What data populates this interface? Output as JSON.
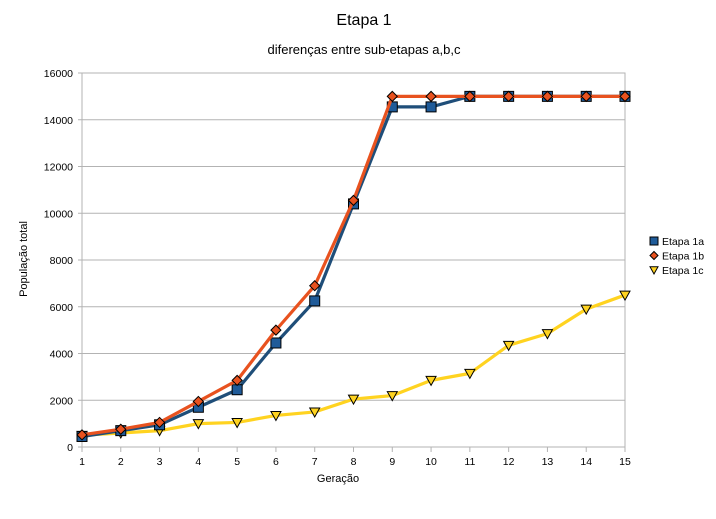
{
  "chart_data": {
    "type": "line",
    "title": "Etapa 1",
    "subtitle": "diferenças entre sub-etapas a,b,c",
    "xlabel": "Geração",
    "ylabel": "População total",
    "x": [
      1,
      2,
      3,
      4,
      5,
      6,
      7,
      8,
      9,
      10,
      11,
      12,
      13,
      14,
      15
    ],
    "xlim": [
      1,
      15
    ],
    "ylim": [
      0,
      16000
    ],
    "yticks": [
      0,
      2000,
      4000,
      6000,
      8000,
      10000,
      12000,
      14000,
      16000
    ],
    "grid": true,
    "legend_position": "right",
    "series": [
      {
        "name": "Etapa 1a",
        "color": "#1f4e79",
        "marker": "square",
        "marker_fill": "#1f5b99",
        "values": [
          450,
          700,
          950,
          1700,
          2450,
          4450,
          6250,
          10400,
          14550,
          14550,
          15000,
          15000,
          15000,
          15000,
          15000
        ]
      },
      {
        "name": "Etapa 1b",
        "color": "#e8521f",
        "marker": "diamond",
        "marker_fill": "#e8521f",
        "values": [
          520,
          760,
          1050,
          1950,
          2850,
          5000,
          6900,
          10550,
          15000,
          15000,
          15000,
          15000,
          15000,
          15000,
          15000
        ]
      },
      {
        "name": "Etapa 1c",
        "color": "#ffd320",
        "marker": "triangle-down",
        "marker_fill": "#ffd320",
        "values": [
          500,
          600,
          700,
          1000,
          1050,
          1350,
          1500,
          2050,
          2200,
          2850,
          3150,
          4350,
          4850,
          5900,
          6500
        ]
      }
    ]
  }
}
